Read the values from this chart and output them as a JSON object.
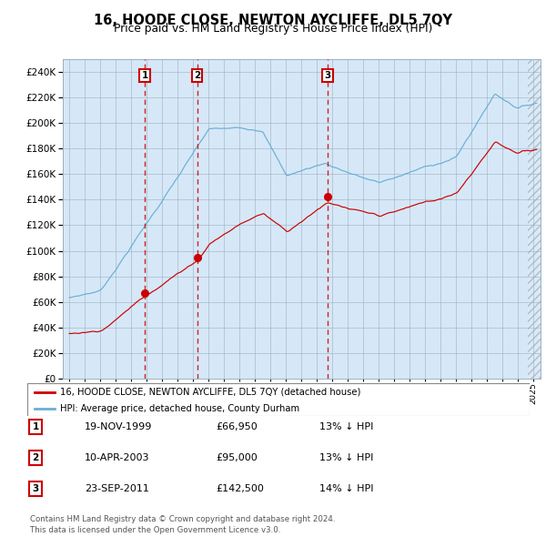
{
  "title": "16, HOODE CLOSE, NEWTON AYCLIFFE, DL5 7QY",
  "subtitle": "Price paid vs. HM Land Registry's House Price Index (HPI)",
  "bg_color": "#d6e8f7",
  "grid_color": "#b0b8c0",
  "red_line_color": "#cc0000",
  "blue_line_color": "#6aaed6",
  "legend_label_red": "16, HOODE CLOSE, NEWTON AYCLIFFE, DL5 7QY (detached house)",
  "legend_label_blue": "HPI: Average price, detached house, County Durham",
  "sale_dates": [
    1999.88,
    2003.27,
    2011.72
  ],
  "sale_prices": [
    66950,
    95000,
    142500
  ],
  "sale_labels": [
    "1",
    "2",
    "3"
  ],
  "footer": "Contains HM Land Registry data © Crown copyright and database right 2024.\nThis data is licensed under the Open Government Licence v3.0.",
  "ylim": [
    0,
    250000
  ],
  "yticks": [
    0,
    20000,
    40000,
    60000,
    80000,
    100000,
    120000,
    140000,
    160000,
    180000,
    200000,
    220000,
    240000
  ],
  "xlim_start": 1994.58,
  "xlim_end": 2025.5,
  "table_data": [
    [
      "1",
      "19-NOV-1999",
      "£66,950",
      "13% ↓ HPI"
    ],
    [
      "2",
      "10-APR-2003",
      "£95,000",
      "13% ↓ HPI"
    ],
    [
      "3",
      "23-SEP-2011",
      "£142,500",
      "14% ↓ HPI"
    ]
  ]
}
